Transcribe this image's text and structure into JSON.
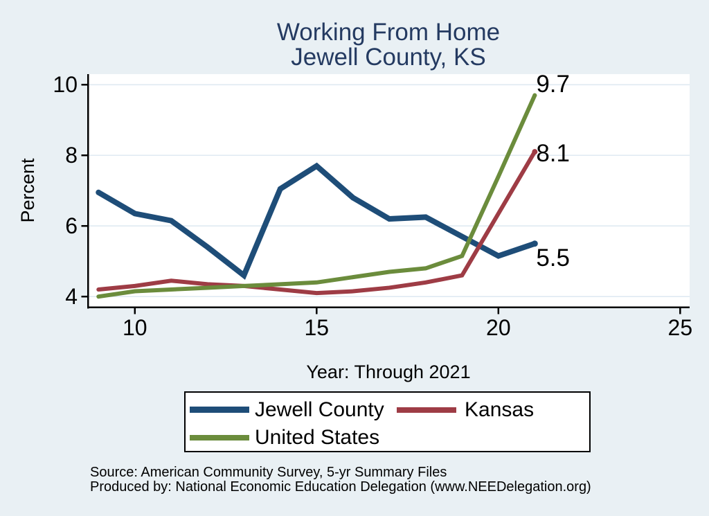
{
  "title": {
    "line1": "Working From Home",
    "line2": "Jewell County, KS"
  },
  "source": {
    "line1": "Source: American Community Survey, 5-yr Summary Files",
    "line2": "Produced by: National Economic Education Delegation (www.NEEDelegation.org)"
  },
  "colors": {
    "background": "#e9f0f4",
    "plot_background": "#ffffff",
    "gridline": "#dfe9f2",
    "axis": "#000000",
    "title_text": "#243a61",
    "jewell_county": "#1e4d78",
    "kansas": "#9e3c45",
    "united_states": "#6b8c3c"
  },
  "chart_data": {
    "type": "line",
    "title": "Working From Home",
    "subtitle": "Jewell County, KS",
    "xlabel": "Year: Through 2021",
    "ylabel": "Percent",
    "xlim": [
      8.69,
      25.26
    ],
    "ylim": [
      3.69,
      10.3
    ],
    "xticks": [
      10,
      15,
      20,
      25
    ],
    "yticks": [
      4,
      6,
      8,
      10
    ],
    "grid": "horizontal-only",
    "legend_position": "bottom",
    "x_years": [
      9,
      10,
      11,
      12,
      13,
      14,
      15,
      16,
      17,
      18,
      19,
      20,
      21
    ],
    "series": [
      {
        "name": "Jewell County",
        "color": "#1e4d78",
        "line_width": 8,
        "marker_radius": 4.5,
        "values": [
          6.95,
          6.35,
          6.15,
          5.4,
          4.6,
          7.05,
          7.7,
          6.8,
          6.2,
          6.25,
          5.7,
          5.15,
          5.5
        ],
        "end_label": "5.5"
      },
      {
        "name": "Kansas",
        "color": "#9e3c45",
        "line_width": 6,
        "marker_radius": 4,
        "values": [
          4.2,
          4.3,
          4.45,
          4.35,
          4.3,
          4.2,
          4.1,
          4.15,
          4.25,
          4.4,
          4.6,
          6.35,
          8.1
        ],
        "end_label": "8.1"
      },
      {
        "name": "United States",
        "color": "#6b8c3c",
        "line_width": 6,
        "marker_radius": 3,
        "values": [
          4.0,
          4.15,
          4.2,
          4.25,
          4.3,
          4.35,
          4.4,
          4.55,
          4.7,
          4.8,
          5.15,
          7.4,
          9.7
        ],
        "end_label": "9.7"
      }
    ]
  }
}
